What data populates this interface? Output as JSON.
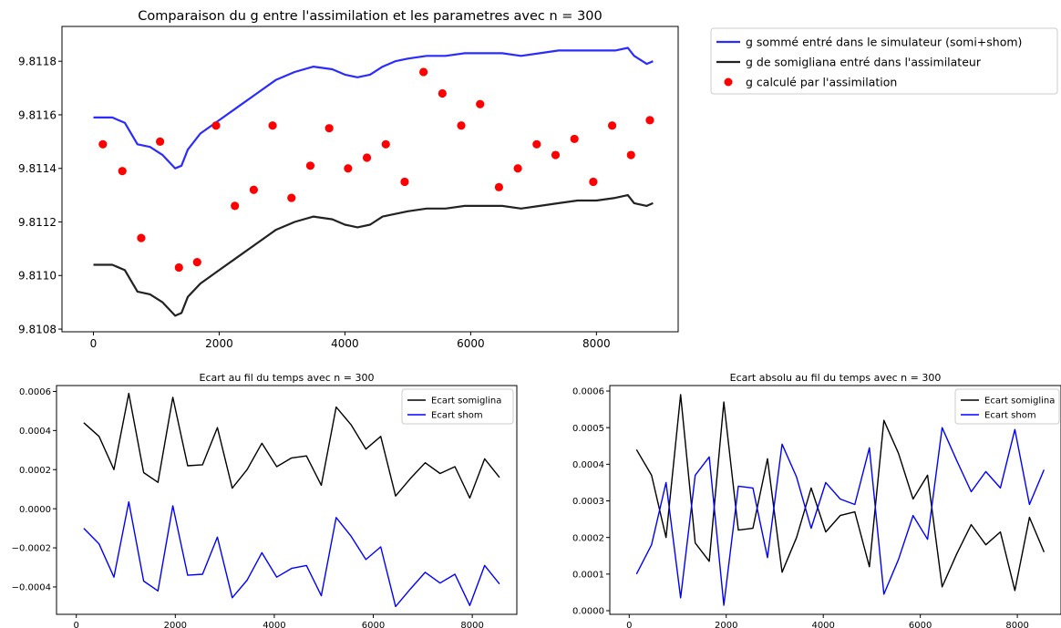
{
  "chart_data": [
    {
      "type": "line",
      "title": "Comparaison du g entre l'assimilation et les parametres avec n = 300",
      "xlabel": "",
      "ylabel": "",
      "xlim": [
        -500,
        9300
      ],
      "ylim": [
        9.81079,
        9.81193
      ],
      "xticks": [
        0,
        2000,
        4000,
        6000,
        8000
      ],
      "yticks": [
        9.8108,
        9.811,
        9.8112,
        9.8114,
        9.8116,
        9.8118
      ],
      "xtick_labels": [
        "0",
        "2000",
        "4000",
        "6000",
        "8000"
      ],
      "ytick_labels": [
        "9.8108",
        "9.8110",
        "9.8112",
        "9.8114",
        "9.8116",
        "9.8118"
      ],
      "legend_position": "outside-right",
      "series": [
        {
          "name": "g sommé entré dans le simulateur (somi+shom)",
          "kind": "line",
          "color": "#2b2bff",
          "x": [
            0,
            300,
            500,
            700,
            900,
            1100,
            1300,
            1400,
            1500,
            1700,
            2000,
            2300,
            2600,
            2900,
            3200,
            3500,
            3800,
            4000,
            4200,
            4400,
            4600,
            4800,
            5000,
            5300,
            5600,
            5900,
            6200,
            6500,
            6800,
            7100,
            7400,
            7700,
            8000,
            8300,
            8500,
            8600,
            8800,
            8900
          ],
          "y": [
            9.81159,
            9.81159,
            9.81157,
            9.81149,
            9.81148,
            9.81145,
            9.8114,
            9.81141,
            9.81147,
            9.81153,
            9.81158,
            9.81163,
            9.81168,
            9.81173,
            9.81176,
            9.81178,
            9.81177,
            9.81175,
            9.81174,
            9.81175,
            9.81178,
            9.8118,
            9.81181,
            9.81182,
            9.81182,
            9.81183,
            9.81183,
            9.81183,
            9.81182,
            9.81183,
            9.81184,
            9.81184,
            9.81184,
            9.81184,
            9.81185,
            9.81182,
            9.81179,
            9.8118
          ]
        },
        {
          "name": "g de somigliana entré dans l'assimilateur",
          "kind": "line",
          "color": "#222222",
          "x": [
            0,
            300,
            500,
            700,
            900,
            1100,
            1300,
            1400,
            1500,
            1700,
            2000,
            2300,
            2600,
            2900,
            3200,
            3500,
            3800,
            4000,
            4200,
            4400,
            4600,
            4800,
            5000,
            5300,
            5600,
            5900,
            6200,
            6500,
            6800,
            7100,
            7400,
            7700,
            8000,
            8300,
            8500,
            8600,
            8800,
            8900
          ],
          "y": [
            9.81104,
            9.81104,
            9.81102,
            9.81094,
            9.81093,
            9.8109,
            9.81085,
            9.81086,
            9.81092,
            9.81097,
            9.81102,
            9.81107,
            9.81112,
            9.81117,
            9.8112,
            9.81122,
            9.81121,
            9.81119,
            9.81118,
            9.81119,
            9.81122,
            9.81123,
            9.81124,
            9.81125,
            9.81125,
            9.81126,
            9.81126,
            9.81126,
            9.81125,
            9.81126,
            9.81127,
            9.81128,
            9.81128,
            9.81129,
            9.8113,
            9.81127,
            9.81126,
            9.81127
          ]
        },
        {
          "name": "g calculé par l'assimilation",
          "kind": "scatter",
          "color": "#ff0000",
          "x": [
            150,
            460,
            760,
            1060,
            1360,
            1650,
            1950,
            2250,
            2550,
            2850,
            3150,
            3450,
            3750,
            4050,
            4350,
            4650,
            4950,
            5250,
            5550,
            5850,
            6150,
            6450,
            6750,
            7050,
            7350,
            7650,
            7950,
            8250,
            8550,
            8850
          ],
          "y": [
            9.81149,
            9.81139,
            9.81114,
            9.8115,
            9.81103,
            9.81105,
            9.81156,
            9.81126,
            9.81132,
            9.81156,
            9.81129,
            9.81141,
            9.81155,
            9.8114,
            9.81144,
            9.81149,
            9.81135,
            9.81176,
            9.81168,
            9.81156,
            9.81164,
            9.81133,
            9.8114,
            9.81149,
            9.81145,
            9.81151,
            9.81135,
            9.81156,
            9.81145,
            9.81158
          ]
        }
      ]
    },
    {
      "type": "line",
      "title": "Ecart au fil du temps avec n = 300",
      "xlabel": "",
      "ylabel": "",
      "xlim": [
        -400,
        8900
      ],
      "ylim": [
        -0.00054,
        0.00063
      ],
      "xticks": [
        0,
        2000,
        4000,
        6000,
        8000
      ],
      "yticks": [
        -0.0004,
        -0.0002,
        0.0,
        0.0002,
        0.0004,
        0.0006
      ],
      "xtick_labels": [
        "0",
        "2000",
        "4000",
        "6000",
        "8000"
      ],
      "ytick_labels": [
        "−0.0004",
        "−0.0002",
        "0.0000",
        "0.0002",
        "0.0004",
        "0.0006"
      ],
      "legend_position": "top-right",
      "x": [
        150,
        460,
        760,
        1060,
        1360,
        1650,
        1950,
        2250,
        2550,
        2850,
        3150,
        3450,
        3750,
        4050,
        4350,
        4650,
        4950,
        5250,
        5550,
        5850,
        6150,
        6450,
        6750,
        7050,
        7350,
        7650,
        7950,
        8250,
        8550
      ],
      "series": [
        {
          "name": "Ecart somiglina",
          "color": "#000000",
          "values": [
            0.00044,
            0.00037,
            0.0002,
            0.00059,
            0.000185,
            0.000135,
            0.00057,
            0.00022,
            0.000225,
            0.000415,
            0.000105,
            0.0002,
            0.000335,
            0.000215,
            0.00026,
            0.00027,
            0.00012,
            0.00052,
            0.00043,
            0.000305,
            0.00037,
            6.5e-05,
            0.000155,
            0.000235,
            0.00018,
            0.000215,
            5.5e-05,
            0.000255,
            0.00016
          ]
        },
        {
          "name": "Ecart shom",
          "color": "#0000ff",
          "values": [
            -0.0001,
            -0.00018,
            -0.00035,
            3.5e-05,
            -0.00037,
            -0.00042,
            1.5e-05,
            -0.00034,
            -0.000335,
            -0.000145,
            -0.000455,
            -0.000365,
            -0.000225,
            -0.00035,
            -0.000305,
            -0.00029,
            -0.000445,
            -4.5e-05,
            -0.00014,
            -0.00026,
            -0.000195,
            -0.0005,
            -0.00041,
            -0.000325,
            -0.00038,
            -0.000335,
            -0.000495,
            -0.00029,
            -0.000385
          ]
        }
      ]
    },
    {
      "type": "line",
      "title": "Ecart absolu au fil du temps avec n = 300",
      "xlabel": "",
      "ylabel": "",
      "xlim": [
        -400,
        8900
      ],
      "ylim": [
        -1e-05,
        0.000615
      ],
      "xticks": [
        0,
        2000,
        4000,
        6000,
        8000
      ],
      "yticks": [
        0.0,
        0.0001,
        0.0002,
        0.0003,
        0.0004,
        0.0005,
        0.0006
      ],
      "xtick_labels": [
        "0",
        "2000",
        "4000",
        "6000",
        "8000"
      ],
      "ytick_labels": [
        "0.0000",
        "0.0001",
        "0.0002",
        "0.0003",
        "0.0004",
        "0.0005",
        "0.0006"
      ],
      "legend_position": "top-right",
      "x": [
        150,
        460,
        760,
        1060,
        1360,
        1650,
        1950,
        2250,
        2550,
        2850,
        3150,
        3450,
        3750,
        4050,
        4350,
        4650,
        4950,
        5250,
        5550,
        5850,
        6150,
        6450,
        6750,
        7050,
        7350,
        7650,
        7950,
        8250,
        8550
      ],
      "series": [
        {
          "name": "Ecart somiglina",
          "color": "#000000",
          "values": [
            0.00044,
            0.00037,
            0.0002,
            0.00059,
            0.000185,
            0.000135,
            0.00057,
            0.00022,
            0.000225,
            0.000415,
            0.000105,
            0.0002,
            0.000335,
            0.000215,
            0.00026,
            0.00027,
            0.00012,
            0.00052,
            0.00043,
            0.000305,
            0.00037,
            6.5e-05,
            0.000155,
            0.000235,
            0.00018,
            0.000215,
            5.5e-05,
            0.000255,
            0.00016
          ]
        },
        {
          "name": "Ecart shom",
          "color": "#0000ff",
          "values": [
            0.0001,
            0.00018,
            0.00035,
            3.5e-05,
            0.00037,
            0.00042,
            1.5e-05,
            0.00034,
            0.000335,
            0.000145,
            0.000455,
            0.000365,
            0.000225,
            0.00035,
            0.000305,
            0.00029,
            0.000445,
            4.5e-05,
            0.00014,
            0.00026,
            0.000195,
            0.0005,
            0.00041,
            0.000325,
            0.00038,
            0.000335,
            0.000495,
            0.00029,
            0.000385
          ]
        }
      ]
    }
  ]
}
